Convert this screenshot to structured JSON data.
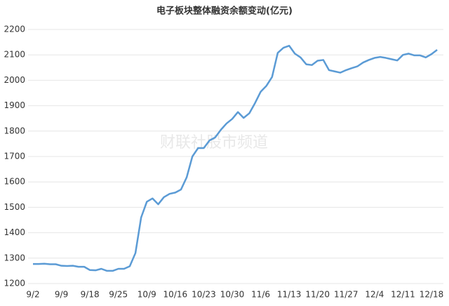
{
  "chart_data": {
    "type": "line",
    "title": "电子板块整体融资余额变动(亿元)",
    "watermark": "财联社股市频道",
    "categories": [
      "9/2",
      null,
      null,
      null,
      null,
      "9/9",
      null,
      null,
      null,
      null,
      "9/18",
      null,
      null,
      null,
      null,
      "9/25",
      null,
      null,
      null,
      null,
      "10/9",
      null,
      null,
      null,
      null,
      "10/16",
      null,
      null,
      null,
      null,
      "10/23",
      null,
      null,
      null,
      null,
      "10/30",
      null,
      null,
      null,
      null,
      "11/6",
      null,
      null,
      null,
      null,
      "11/13",
      null,
      null,
      null,
      null,
      "11/20",
      null,
      null,
      null,
      null,
      "11/27",
      null,
      null,
      null,
      null,
      "12/4",
      null,
      null,
      null,
      null,
      "12/11",
      null,
      null,
      null,
      null,
      "12/18",
      null
    ],
    "series": [
      {
        "color": "#5b9bd5",
        "values": [
          1277,
          1277,
          1278,
          1276,
          1276,
          1270,
          1269,
          1270,
          1266,
          1266,
          1253,
          1252,
          1258,
          1250,
          1250,
          1258,
          1258,
          1268,
          1320,
          1460,
          1522,
          1535,
          1512,
          1540,
          1553,
          1558,
          1570,
          1618,
          1700,
          1733,
          1733,
          1763,
          1775,
          1805,
          1830,
          1848,
          1875,
          1852,
          1870,
          1910,
          1955,
          1978,
          2013,
          2108,
          2128,
          2136,
          2105,
          2090,
          2063,
          2060,
          2077,
          2080,
          2040,
          2035,
          2030,
          2040,
          2048,
          2055,
          2070,
          2080,
          2088,
          2092,
          2088,
          2083,
          2078,
          2100,
          2105,
          2098,
          2098,
          2090,
          2103,
          2120
        ]
      }
    ],
    "ylim": [
      1200,
      2200
    ],
    "yticks": [
      1200,
      1300,
      1400,
      1500,
      1600,
      1700,
      1800,
      1900,
      2000,
      2100,
      2200
    ],
    "grid": true
  }
}
